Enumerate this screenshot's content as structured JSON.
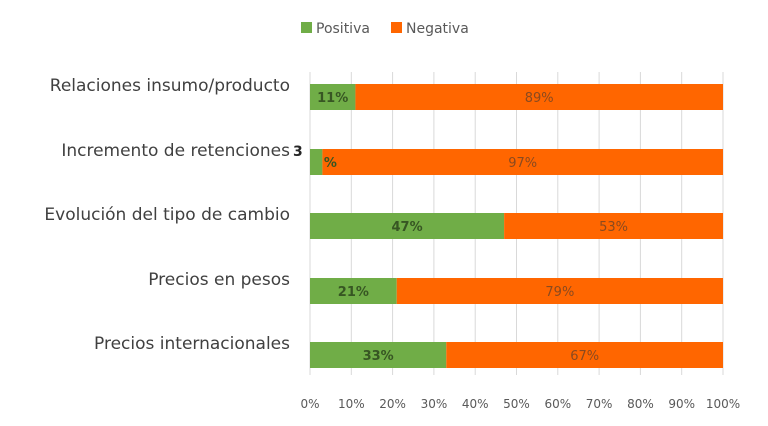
{
  "chart_data": {
    "type": "bar",
    "orientation": "horizontal",
    "stacked": true,
    "title": "",
    "xlabel": "",
    "ylabel": "",
    "xlim": [
      0,
      100
    ],
    "x_ticks": [
      "0%",
      "10%",
      "20%",
      "30%",
      "40%",
      "50%",
      "60%",
      "70%",
      "80%",
      "90%",
      "100%"
    ],
    "grid": true,
    "legend_position": "top-center",
    "categories": [
      "Relaciones insumo/producto",
      "Incremento de retenciones",
      "Evolución del tipo de cambio",
      "Precios en pesos",
      "Precios internacionales"
    ],
    "series": [
      {
        "name": "Positiva",
        "color": "#70AD47",
        "values": [
          11,
          3,
          47,
          21,
          33
        ],
        "labels": [
          "11%",
          "%",
          "47%",
          "21%",
          "33%"
        ]
      },
      {
        "name": "Negativa",
        "color": "#FF6600",
        "values": [
          89,
          97,
          53,
          79,
          67
        ],
        "labels": [
          "89%",
          "97%",
          "53%",
          "79%",
          "67%"
        ]
      }
    ],
    "outside_labels": [
      {
        "category": "Incremento de retenciones",
        "text": "3"
      }
    ]
  }
}
